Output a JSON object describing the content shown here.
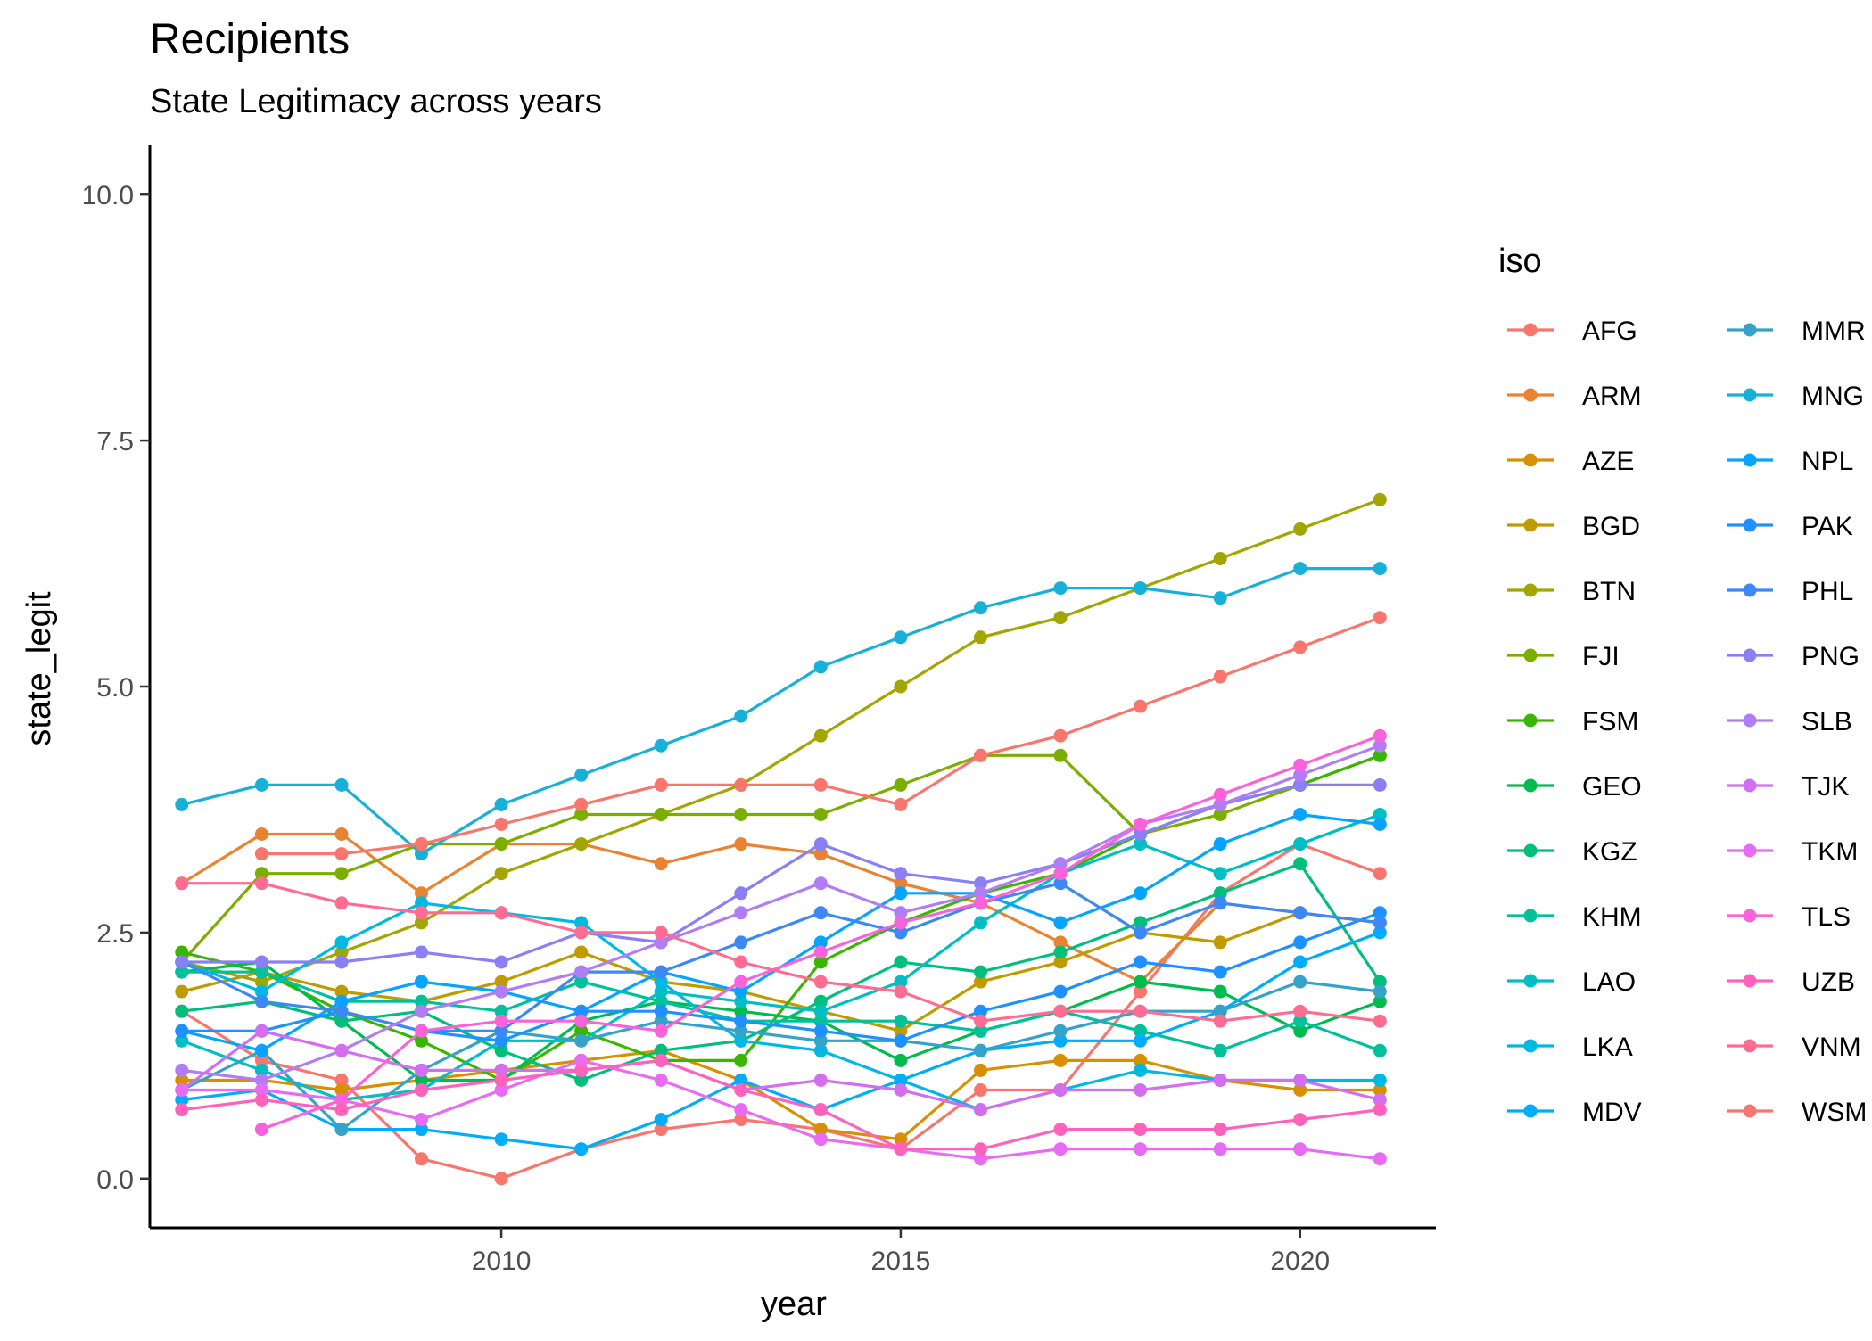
{
  "chart_data": {
    "type": "line",
    "title": "Recipients",
    "subtitle": "State Legitimacy across years",
    "xlabel": "year",
    "ylabel": "state_legit",
    "xlim": [
      2005.6,
      2021.7
    ],
    "ylim": [
      -0.5,
      10.5
    ],
    "x_ticks": [
      2010,
      2015,
      2020
    ],
    "x_tick_labels": [
      "2010",
      "2015",
      "2020"
    ],
    "y_ticks": [
      0,
      2.5,
      5,
      7.5,
      10
    ],
    "y_tick_labels": [
      "0.0",
      "2.5",
      "5.0",
      "7.5",
      "10.0"
    ],
    "grid": false,
    "legend_title": "iso",
    "legend_position": "right",
    "x": [
      2006,
      2007,
      2008,
      2009,
      2010,
      2011,
      2012,
      2013,
      2014,
      2015,
      2016,
      2017,
      2018,
      2019,
      2020,
      2021
    ],
    "series": [
      {
        "name": "AFG",
        "color": "#F8766D",
        "values": [
          1.7,
          1.2,
          1.0,
          0.2,
          0.0,
          0.3,
          0.5,
          0.6,
          0.5,
          0.3,
          0.9,
          0.9,
          1.9,
          2.9,
          3.4,
          3.1
        ]
      },
      {
        "name": "ARM",
        "color": "#EA8331",
        "values": [
          3.0,
          3.5,
          3.5,
          2.9,
          3.4,
          3.4,
          3.2,
          3.4,
          3.3,
          3.0,
          2.8,
          2.4,
          2.0,
          2.8,
          2.7,
          2.6
        ]
      },
      {
        "name": "AZE",
        "color": "#D89000",
        "values": [
          1.0,
          1.0,
          0.9,
          1.0,
          1.1,
          1.2,
          1.3,
          1.0,
          0.5,
          0.4,
          1.1,
          1.2,
          1.2,
          1.0,
          0.9,
          0.9
        ]
      },
      {
        "name": "BGD",
        "color": "#C09B00",
        "values": [
          1.9,
          2.1,
          1.9,
          1.8,
          2.0,
          2.3,
          2.0,
          1.9,
          1.7,
          1.5,
          2.0,
          2.2,
          2.5,
          2.4,
          2.7,
          2.6
        ]
      },
      {
        "name": "BTN",
        "color": "#A3A500",
        "values": [
          2.2,
          2.0,
          2.3,
          2.6,
          3.1,
          3.4,
          3.7,
          4.0,
          4.5,
          5.0,
          5.5,
          5.7,
          6.0,
          6.3,
          6.6,
          6.9
        ]
      },
      {
        "name": "FJI",
        "color": "#7CAE00",
        "values": [
          2.2,
          3.1,
          3.1,
          3.4,
          3.4,
          3.7,
          3.7,
          3.7,
          3.7,
          4.0,
          4.3,
          4.3,
          3.5,
          3.7,
          4.0,
          4.3
        ]
      },
      {
        "name": "FSM",
        "color": "#39B600",
        "values": [
          2.3,
          2.1,
          1.7,
          1.4,
          1.0,
          1.5,
          1.2,
          1.2,
          2.2,
          2.6,
          2.9,
          3.1,
          3.5,
          3.8,
          4.0,
          4.3
        ]
      },
      {
        "name": "GEO",
        "color": "#00BB4E",
        "values": [
          2.1,
          2.2,
          1.6,
          1.0,
          1.0,
          1.6,
          1.8,
          1.7,
          1.6,
          1.2,
          1.5,
          1.7,
          2.0,
          1.9,
          1.5,
          1.8
        ]
      },
      {
        "name": "KGZ",
        "color": "#00BF7D",
        "values": [
          1.7,
          1.8,
          1.6,
          1.7,
          1.3,
          1.0,
          1.3,
          1.4,
          1.8,
          2.2,
          2.1,
          2.3,
          2.6,
          2.9,
          3.2,
          2.0
        ]
      },
      {
        "name": "KHM",
        "color": "#00C19A",
        "values": [
          2.1,
          2.1,
          1.8,
          1.8,
          1.7,
          2.0,
          1.8,
          1.6,
          1.6,
          1.6,
          1.5,
          1.7,
          1.5,
          1.3,
          1.6,
          1.3
        ]
      },
      {
        "name": "LAO",
        "color": "#00BFC4",
        "values": [
          1.4,
          1.1,
          0.8,
          0.9,
          1.4,
          1.4,
          1.9,
          1.8,
          1.7,
          2.0,
          2.6,
          3.1,
          3.4,
          3.1,
          3.4,
          3.7
        ]
      },
      {
        "name": "LKA",
        "color": "#00B9E3",
        "values": [
          2.2,
          1.9,
          2.4,
          2.8,
          2.7,
          2.6,
          2.0,
          1.4,
          1.3,
          1.0,
          0.7,
          0.9,
          1.1,
          1.0,
          1.0,
          1.0
        ]
      },
      {
        "name": "MDV",
        "color": "#00ADFA",
        "values": [
          0.8,
          0.9,
          0.5,
          0.5,
          0.4,
          0.3,
          0.6,
          1.0,
          0.7,
          1.0,
          1.3,
          1.4,
          1.4,
          1.7,
          2.2,
          2.5
        ]
      },
      {
        "name": "MMR",
        "color": "#35A2C9",
        "values": [
          0.9,
          1.3,
          0.5,
          1.1,
          1.5,
          1.4,
          1.6,
          1.5,
          1.4,
          1.4,
          1.3,
          1.5,
          1.7,
          1.7,
          2.0,
          1.9
        ]
      },
      {
        "name": "MNG",
        "color": "#17B0D8",
        "values": [
          3.8,
          4.0,
          4.0,
          3.3,
          3.8,
          4.1,
          4.4,
          4.7,
          5.2,
          5.5,
          5.8,
          6.0,
          6.0,
          5.9,
          6.2,
          6.2
        ]
      },
      {
        "name": "NPL",
        "color": "#06A4FF",
        "values": [
          1.5,
          1.3,
          1.8,
          2.0,
          1.9,
          1.7,
          2.1,
          1.9,
          2.4,
          2.9,
          2.9,
          2.6,
          2.9,
          3.4,
          3.7,
          3.6
        ]
      },
      {
        "name": "PAK",
        "color": "#1E90FF",
        "values": [
          1.5,
          1.5,
          1.7,
          1.5,
          1.4,
          1.7,
          1.7,
          1.6,
          1.5,
          1.4,
          1.7,
          1.9,
          2.2,
          2.1,
          2.4,
          2.7
        ]
      },
      {
        "name": "PHL",
        "color": "#3D88F5",
        "values": [
          2.2,
          1.8,
          1.7,
          1.5,
          1.5,
          2.1,
          2.1,
          2.4,
          2.7,
          2.5,
          2.8,
          3.0,
          2.5,
          2.8,
          2.7,
          2.6
        ]
      },
      {
        "name": "PNG",
        "color": "#8A7FF5",
        "values": [
          2.2,
          2.2,
          2.2,
          2.3,
          2.2,
          2.5,
          2.4,
          2.9,
          3.4,
          3.1,
          3.0,
          3.2,
          3.5,
          3.8,
          4.0,
          4.0
        ]
      },
      {
        "name": "SLB",
        "color": "#B17DF5",
        "values": [
          1.1,
          1.0,
          1.3,
          1.7,
          1.9,
          2.1,
          2.4,
          2.7,
          3.0,
          2.7,
          2.9,
          3.2,
          3.6,
          3.8,
          4.1,
          4.4
        ]
      },
      {
        "name": "TJK",
        "color": "#D36EF0",
        "values": [
          0.9,
          1.5,
          1.3,
          1.1,
          1.1,
          1.1,
          1.2,
          0.9,
          1.0,
          0.9,
          0.7,
          0.9,
          0.9,
          1.0,
          1.0,
          0.8
        ]
      },
      {
        "name": "TKM",
        "color": "#E76BF3",
        "values": [
          0.9,
          0.9,
          0.8,
          0.6,
          0.9,
          1.2,
          1.0,
          0.7,
          0.4,
          0.3,
          0.2,
          0.3,
          0.3,
          0.3,
          0.3,
          0.2
        ]
      },
      {
        "name": "TLS",
        "color": "#FA62DB",
        "values": [
          null,
          0.5,
          0.8,
          1.5,
          1.6,
          1.6,
          1.5,
          2.0,
          2.3,
          2.6,
          2.8,
          3.1,
          3.6,
          3.9,
          4.2,
          4.5
        ]
      },
      {
        "name": "UZB",
        "color": "#FF62BC",
        "values": [
          0.7,
          0.8,
          0.7,
          0.9,
          1.0,
          1.1,
          1.2,
          0.9,
          0.7,
          0.3,
          0.3,
          0.5,
          0.5,
          0.5,
          0.6,
          0.7
        ]
      },
      {
        "name": "VNM",
        "color": "#FF6C91",
        "values": [
          3.0,
          3.0,
          2.8,
          2.7,
          2.7,
          2.5,
          2.5,
          2.2,
          2.0,
          1.9,
          1.6,
          1.7,
          1.7,
          1.6,
          1.7,
          1.6
        ]
      },
      {
        "name": "WSM",
        "color": "#F8766D",
        "values": [
          null,
          3.3,
          3.3,
          3.4,
          3.6,
          3.8,
          4.0,
          4.0,
          4.0,
          3.8,
          4.3,
          4.5,
          4.8,
          5.1,
          5.4,
          5.7
        ]
      }
    ]
  }
}
